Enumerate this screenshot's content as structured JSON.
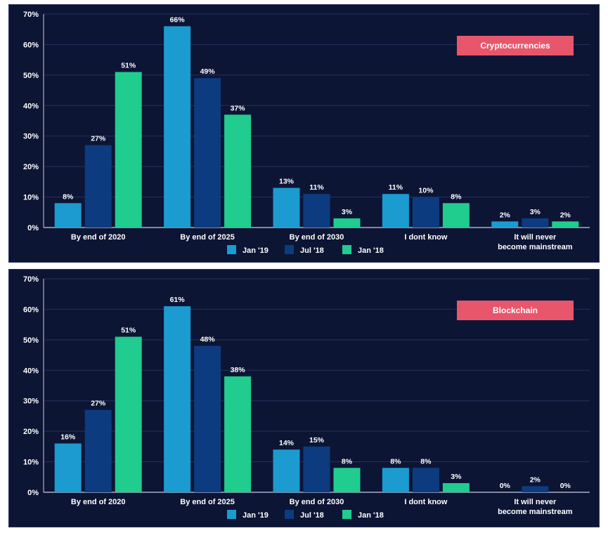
{
  "colors": {
    "panel_bg": "#0d1535",
    "grid": "#27325c",
    "axis": "#c8cede",
    "badge": "#e8566c",
    "series": [
      "#1b9bd0",
      "#0d3b80",
      "#20cc8e"
    ]
  },
  "chart_data": [
    {
      "type": "bar",
      "title": "Cryptocurrencies",
      "categories": [
        "By end of 2020",
        "By end of 2025",
        "By end of 2030",
        "I dont know",
        "It will never\nbecome mainstream"
      ],
      "series": [
        {
          "name": "Jan '19",
          "values": [
            8,
            66,
            13,
            11,
            2
          ]
        },
        {
          "name": "Jul '18",
          "values": [
            27,
            49,
            11,
            10,
            3
          ]
        },
        {
          "name": "Jan '18",
          "values": [
            51,
            37,
            3,
            8,
            2
          ]
        }
      ],
      "value_labels": [
        [
          "8%",
          "66%",
          "13%",
          "11%",
          "2%"
        ],
        [
          "27%",
          "49%",
          "11%",
          "10%",
          "3%"
        ],
        [
          "51%",
          "37%",
          "3%",
          "8%",
          "2%"
        ]
      ],
      "yticks": [
        "0%",
        "10%",
        "20%",
        "30%",
        "40%",
        "50%",
        "60%",
        "70%"
      ],
      "ylim": [
        0,
        70
      ],
      "grid": true,
      "legend_position": "bottom-center"
    },
    {
      "type": "bar",
      "title": "Blockchain",
      "categories": [
        "By end of 2020",
        "By end of 2025",
        "By end of 2030",
        "I dont know",
        "It will never\nbecome mainstream"
      ],
      "series": [
        {
          "name": "Jan '19",
          "values": [
            16,
            61,
            14,
            8,
            0
          ]
        },
        {
          "name": "Jul '18",
          "values": [
            27,
            48,
            15,
            8,
            2
          ]
        },
        {
          "name": "Jan '18",
          "values": [
            51,
            38,
            8,
            3,
            0
          ]
        }
      ],
      "value_labels": [
        [
          "16%",
          "61%",
          "14%",
          "8%",
          "0%"
        ],
        [
          "27%",
          "48%",
          "15%",
          "8%",
          "2%"
        ],
        [
          "51%",
          "38%",
          "8%",
          "3%",
          "0%"
        ]
      ],
      "yticks": [
        "0%",
        "10%",
        "20%",
        "30%",
        "40%",
        "50%",
        "60%",
        "70%"
      ],
      "ylim": [
        0,
        70
      ],
      "grid": true,
      "legend_position": "bottom-center"
    }
  ]
}
